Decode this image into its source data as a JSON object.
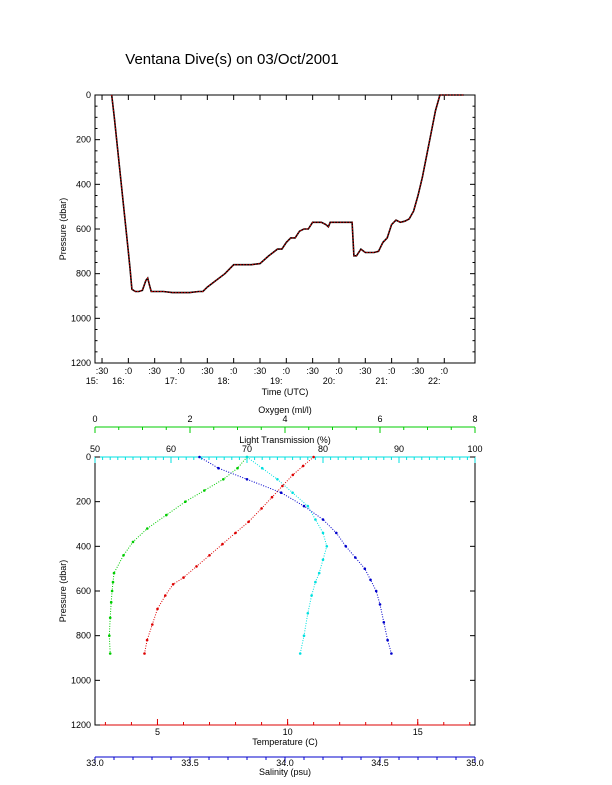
{
  "title": "Ventana Dive(s) on 03/Oct/2001",
  "colors": {
    "trace": "#cc0000",
    "oxygen": "#00cc00",
    "light": "#00e0e0",
    "temperature": "#dd0000",
    "salinity": "#0000cc"
  },
  "chart_data": [
    {
      "type": "line",
      "title": "Ventana Dive(s) on 03/Oct/2001",
      "xlabel": "Time (UTC)",
      "ylabel": "Pressure (dbar)",
      "ylim": [
        1200,
        0
      ],
      "xlim": [
        "15:22",
        "22:35"
      ],
      "x_ticks": [
        {
          "top": ":30",
          "bottom": "15:"
        },
        {
          "top": ":0",
          "bottom": "16:"
        },
        {
          "top": ":30",
          "bottom": ""
        },
        {
          "top": ":0",
          "bottom": "17:"
        },
        {
          "top": ":30",
          "bottom": ""
        },
        {
          "top": ":0",
          "bottom": "18:"
        },
        {
          "top": ":30",
          "bottom": ""
        },
        {
          "top": ":0",
          "bottom": "19:"
        },
        {
          "top": ":30",
          "bottom": ""
        },
        {
          "top": ":0",
          "bottom": "20:"
        },
        {
          "top": ":30",
          "bottom": ""
        },
        {
          "top": ":0",
          "bottom": "21:"
        },
        {
          "top": ":30",
          "bottom": ""
        },
        {
          "top": ":0",
          "bottom": "22:"
        }
      ],
      "y_ticks": [
        "0",
        "200",
        "400",
        "600",
        "800",
        "1000",
        "1200"
      ],
      "grid": false,
      "series": [
        {
          "x": [
            "15:41",
            "15:44",
            "15:48",
            "15:52",
            "15:56",
            "16:00",
            "16:02",
            "16:04",
            "16:08",
            "16:12",
            "16:16",
            "16:20",
            "16:22",
            "16:24",
            "16:26",
            "16:28",
            "16:30",
            "16:35",
            "16:40",
            "16:50",
            "17:00",
            "17:10",
            "17:20",
            "17:25",
            "17:30",
            "17:40",
            "17:50",
            "18:00",
            "18:05",
            "18:10",
            "18:20",
            "18:30",
            "18:40",
            "18:50",
            "18:55",
            "19:00",
            "19:05",
            "19:10",
            "19:15",
            "19:20",
            "19:25",
            "19:30",
            "19:35",
            "19:40",
            "19:45",
            "19:48",
            "19:50",
            "19:55",
            "20:00",
            "20:10",
            "20:15",
            "20:17",
            "20:20",
            "20:25",
            "20:30",
            "20:40",
            "20:45",
            "20:50",
            "20:55",
            "21:00",
            "21:05",
            "21:10",
            "21:15",
            "21:20",
            "21:25",
            "21:30",
            "21:35",
            "21:40",
            "21:45",
            "21:50",
            "21:55",
            "22:00",
            "22:05",
            "22:10",
            "22:15",
            "22:20",
            "22:22"
          ],
          "y": [
            0,
            100,
            250,
            400,
            550,
            700,
            780,
            870,
            880,
            880,
            875,
            830,
            820,
            850,
            880,
            880,
            880,
            880,
            880,
            885,
            885,
            885,
            880,
            880,
            860,
            830,
            800,
            760,
            760,
            760,
            760,
            755,
            720,
            690,
            690,
            660,
            640,
            640,
            610,
            600,
            600,
            570,
            570,
            570,
            580,
            590,
            570,
            570,
            570,
            570,
            570,
            720,
            720,
            690,
            705,
            705,
            700,
            660,
            640,
            580,
            560,
            570,
            565,
            555,
            520,
            450,
            370,
            270,
            170,
            70,
            0,
            0,
            0,
            0,
            0,
            0,
            0
          ],
          "values_note": ""
        }
      ]
    },
    {
      "type": "scatter",
      "ylabel": "Pressure (dbar)",
      "ylim": [
        1200,
        0
      ],
      "y_ticks": [
        "0",
        "200",
        "400",
        "600",
        "800",
        "1000",
        "1200"
      ],
      "grid": false,
      "axes": {
        "oxygen": {
          "label": "Oxygen (ml/l)",
          "range": [
            0,
            8
          ],
          "ticks": [
            "0",
            "2",
            "4",
            "6",
            "8"
          ]
        },
        "light": {
          "label": "Light Transmission (%)",
          "range": [
            50,
            100
          ],
          "ticks": [
            "50",
            "60",
            "70",
            "80",
            "90",
            "100"
          ]
        },
        "temperature": {
          "label": "Temperature (C)",
          "range": [
            2.6,
            17.2
          ],
          "ticks": [
            "5",
            "10",
            "15"
          ]
        },
        "salinity": {
          "label": "Salinity (psu)",
          "range": [
            33.0,
            35.0
          ],
          "ticks": [
            "33.0",
            "33.5",
            "34.0",
            "34.5",
            "35.0"
          ]
        }
      },
      "series": [
        {
          "name": "Oxygen (ml/l)",
          "axis": "oxygen",
          "x": [
            3.2,
            3.0,
            2.7,
            2.3,
            1.9,
            1.5,
            1.1,
            0.8,
            0.6,
            0.4,
            0.38,
            0.36,
            0.34,
            0.32,
            0.3,
            0.32
          ],
          "y": [
            0,
            50,
            100,
            150,
            200,
            260,
            320,
            380,
            440,
            520,
            560,
            600,
            650,
            720,
            800,
            880
          ]
        },
        {
          "name": "Light Transmission (%)",
          "axis": "light",
          "x": [
            70,
            72,
            74,
            76,
            78,
            79,
            80,
            80.5,
            80,
            79.5,
            79,
            78.5,
            78,
            77.5,
            77
          ],
          "y": [
            0,
            50,
            100,
            160,
            220,
            280,
            340,
            400,
            460,
            520,
            560,
            620,
            700,
            800,
            880
          ]
        },
        {
          "name": "Temperature (C)",
          "axis": "temperature",
          "x": [
            11.0,
            10.6,
            10.2,
            9.8,
            9.4,
            9.0,
            8.5,
            8.0,
            7.5,
            7.0,
            6.5,
            6.0,
            5.6,
            5.3,
            5.0,
            4.8,
            4.6,
            4.5
          ],
          "y": [
            0,
            40,
            80,
            130,
            180,
            230,
            290,
            340,
            390,
            440,
            490,
            540,
            570,
            620,
            680,
            750,
            820,
            880
          ]
        },
        {
          "name": "Salinity (psu)",
          "axis": "salinity",
          "x": [
            33.55,
            33.65,
            33.8,
            33.98,
            34.1,
            34.2,
            34.27,
            34.32,
            34.37,
            34.42,
            34.45,
            34.48,
            34.5,
            34.52,
            34.54,
            34.56
          ],
          "y": [
            0,
            50,
            100,
            160,
            220,
            280,
            340,
            400,
            450,
            500,
            550,
            600,
            660,
            740,
            820,
            880
          ]
        }
      ]
    }
  ]
}
